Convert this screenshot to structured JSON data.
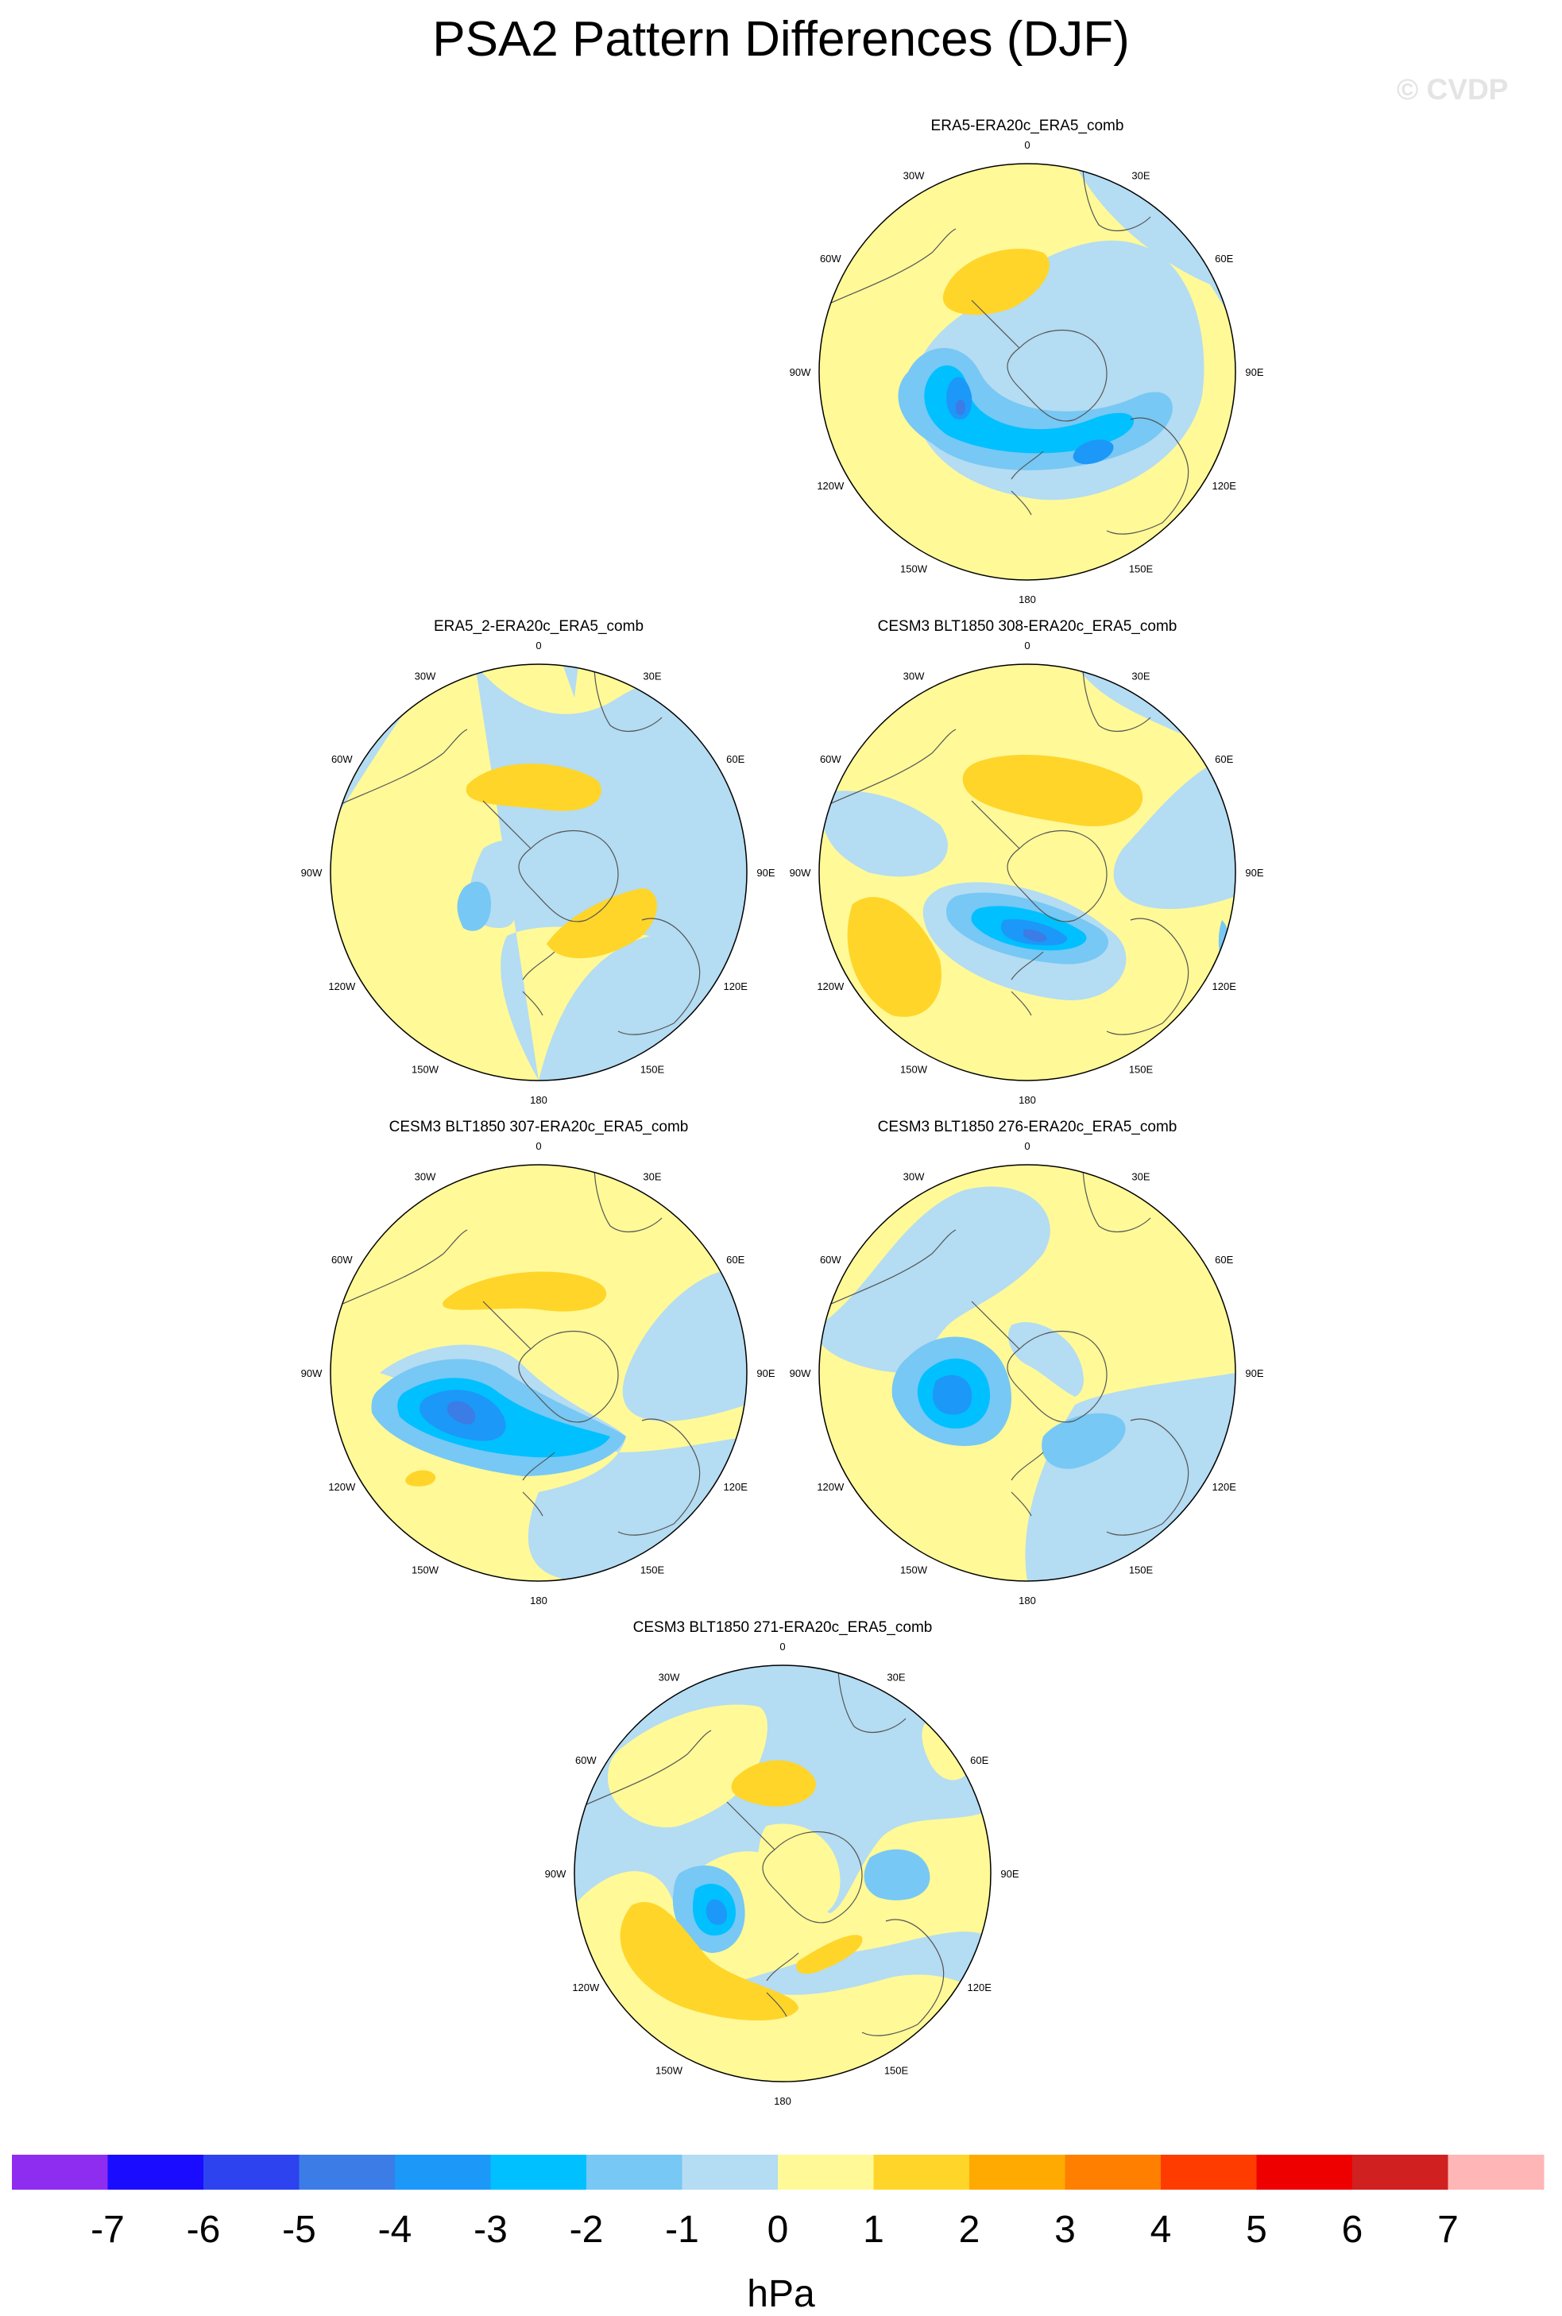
{
  "title": "PSA2 Pattern Differences (DJF)",
  "watermark": "© CVDP",
  "palette": {
    "-7": "#8e2cf0",
    "-6": "#1a0dff",
    "-5": "#2c43ef",
    "-4": "#3b7ce6",
    "-3": "#1c98f8",
    "-2": "#00c0ff",
    "-1": "#77c8f4",
    "0": "#b4dcf2",
    "1": "#fff998",
    "2": "#ffd52a",
    "3": "#ffaa00",
    "4": "#ff7f00",
    "5": "#ff3c00",
    "6": "#ee0000",
    "7": "#d02020",
    "8": "#ffb6b6"
  },
  "lon_labels": [
    "0",
    "30E",
    "60E",
    "90E",
    "120E",
    "150E",
    "180",
    "150W",
    "120W",
    "90W",
    "60W",
    "30W"
  ],
  "panels": [
    {
      "title": "ERA5-ERA20c_ERA5_comb"
    },
    {
      "title": "ERA5_2-ERA20c_ERA5_comb"
    },
    {
      "title": "CESM3 BLT1850 308-ERA20c_ERA5_comb"
    },
    {
      "title": "CESM3 BLT1850 307-ERA20c_ERA5_comb"
    },
    {
      "title": "CESM3 BLT1850 276-ERA20c_ERA5_comb"
    },
    {
      "title": "CESM3 BLT1850 271-ERA20c_ERA5_comb"
    }
  ],
  "colorbar": {
    "tick_labels": [
      "-7",
      "-6",
      "-5",
      "-4",
      "-3",
      "-2",
      "-1",
      "0",
      "1",
      "2",
      "3",
      "4",
      "5",
      "6",
      "7"
    ],
    "unit": "hPa"
  }
}
